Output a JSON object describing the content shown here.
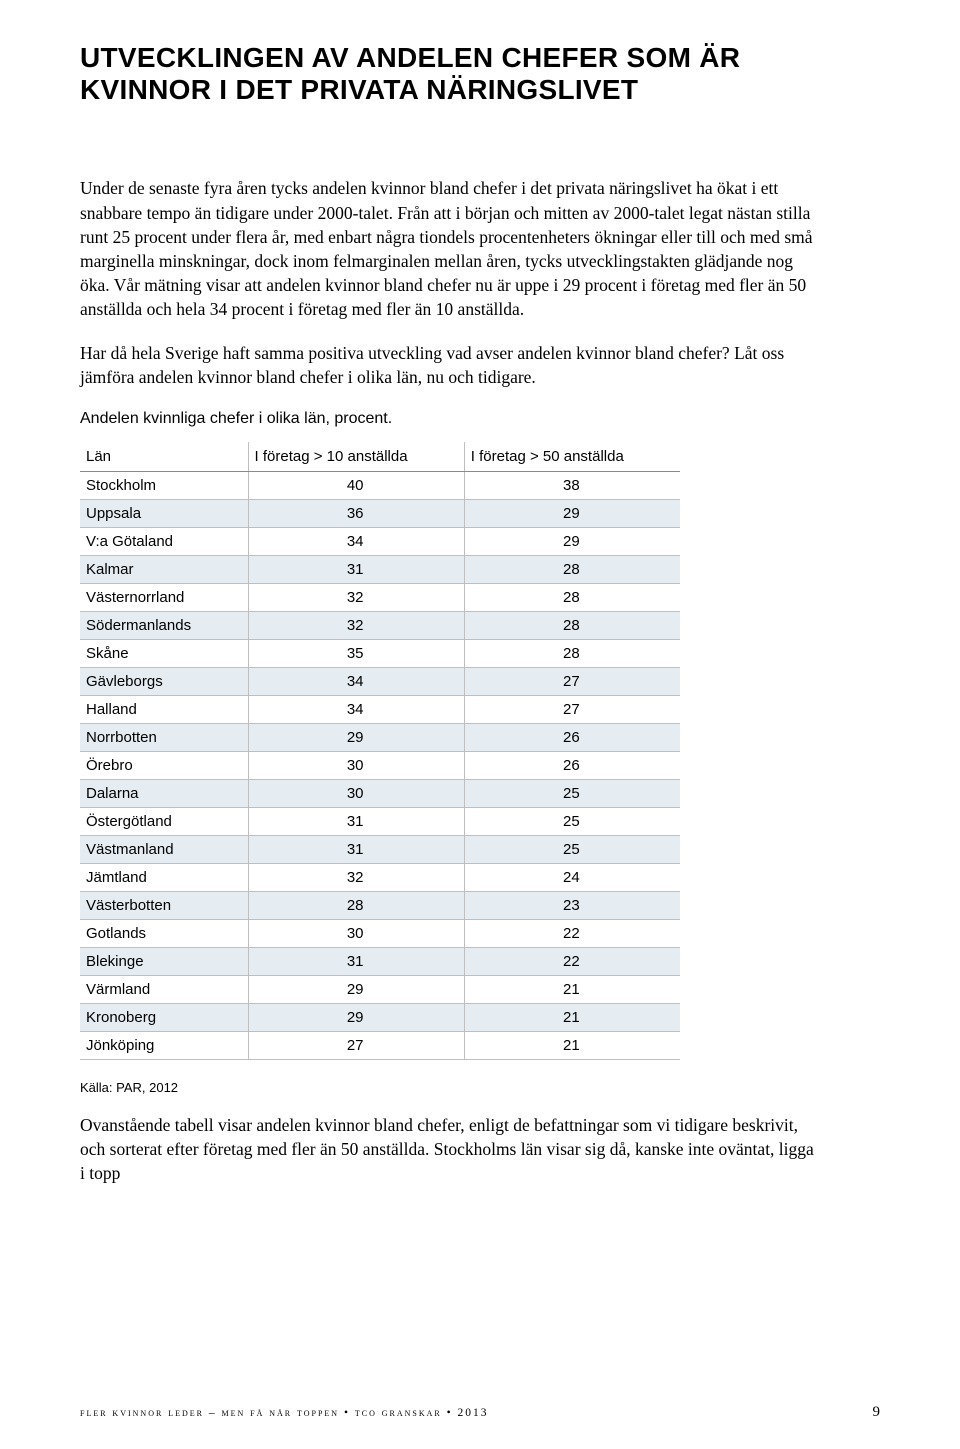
{
  "title": "UTVECKLINGEN AV ANDELEN CHEFER SOM ÄR KVINNOR I DET PRIVATA NÄRINGSLIVET",
  "paragraphs": {
    "p1": "Under de senaste fyra åren tycks andelen kvinnor bland chefer i det privata näringslivet ha ökat i ett snabbare tempo än tidigare under 2000-talet. Från att i början och mitten av 2000-talet legat nästan stilla runt 25 procent under flera år, med enbart några tiondels procentenheters ökningar eller till och med små marginella minskningar, dock inom felmarginalen mellan åren, tycks utvecklingstakten glädjande nog öka. Vår mätning visar att andelen kvinnor bland chefer nu är uppe i 29 procent i företag med fler än 50 anställda och hela 34 procent i företag med fler än 10 anställda.",
    "p2": "Har då hela Sverige haft samma positiva utveckling vad avser andelen kvinnor bland chefer? Låt oss jämföra andelen kvinnor bland chefer i olika län, nu och tidigare.",
    "p3": "Ovanstående tabell visar andelen kvinnor bland chefer, enligt de befattningar som vi tidigare beskrivit, och sorterat efter företag med fler än 50 anställda. Stockholms län visar sig då, kanske inte oväntat, ligga i topp"
  },
  "table": {
    "caption": "Andelen kvinnliga chefer i olika län, procent.",
    "columns": {
      "lan": "Län",
      "c1": "I företag > 10 anställda",
      "c2": "I företag > 50 anställda"
    },
    "row_background_even": "#e6edf2",
    "border_color": "#bfbfbf",
    "header_border_color": "#8a8a8a",
    "font_size": 15,
    "rows": [
      {
        "lan": "Stockholm",
        "v1": "40",
        "v2": "38"
      },
      {
        "lan": "Uppsala",
        "v1": "36",
        "v2": "29"
      },
      {
        "lan": "V:a Götaland",
        "v1": "34",
        "v2": "29"
      },
      {
        "lan": "Kalmar",
        "v1": "31",
        "v2": "28"
      },
      {
        "lan": "Västernorrland",
        "v1": "32",
        "v2": "28"
      },
      {
        "lan": "Södermanlands",
        "v1": "32",
        "v2": "28"
      },
      {
        "lan": "Skåne",
        "v1": "35",
        "v2": "28"
      },
      {
        "lan": "Gävleborgs",
        "v1": "34",
        "v2": "27"
      },
      {
        "lan": "Halland",
        "v1": "34",
        "v2": "27"
      },
      {
        "lan": "Norrbotten",
        "v1": "29",
        "v2": "26"
      },
      {
        "lan": "Örebro",
        "v1": "30",
        "v2": "26"
      },
      {
        "lan": "Dalarna",
        "v1": "30",
        "v2": "25"
      },
      {
        "lan": "Östergötland",
        "v1": "31",
        "v2": "25"
      },
      {
        "lan": "Västmanland",
        "v1": "31",
        "v2": "25"
      },
      {
        "lan": "Jämtland",
        "v1": "32",
        "v2": "24"
      },
      {
        "lan": "Västerbotten",
        "v1": "28",
        "v2": "23"
      },
      {
        "lan": "Gotlands",
        "v1": "30",
        "v2": "22"
      },
      {
        "lan": "Blekinge",
        "v1": "31",
        "v2": "22"
      },
      {
        "lan": "Värmland",
        "v1": "29",
        "v2": "21"
      },
      {
        "lan": "Kronoberg",
        "v1": "29",
        "v2": "21"
      },
      {
        "lan": "Jönköping",
        "v1": "27",
        "v2": "21"
      }
    ]
  },
  "source": "Källa: PAR, 2012",
  "footer": {
    "text": "fler kvinnor leder – men få når toppen • tco granskar • 2013",
    "page": "9"
  },
  "colors": {
    "background": "#ffffff",
    "text": "#000000"
  }
}
